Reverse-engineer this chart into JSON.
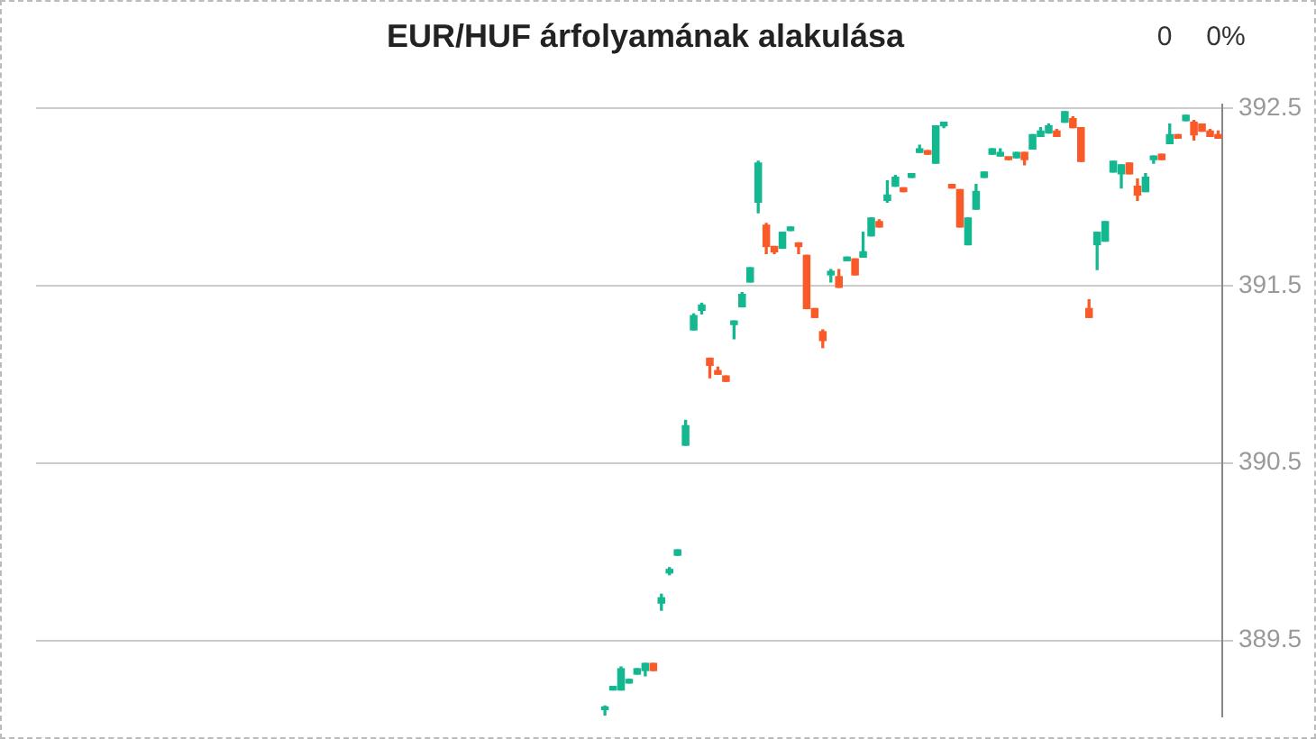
{
  "chart_data": {
    "type": "candlestick",
    "title": "EUR/HUF árfolyamának alakulása",
    "annotations": [
      "0",
      "0%"
    ],
    "categories": [
      null,
      null,
      null,
      null,
      null,
      null,
      null,
      null,
      null,
      null,
      null,
      null,
      null,
      null,
      null,
      null,
      null,
      null,
      null,
      null,
      null,
      null,
      null,
      null,
      null,
      null,
      null,
      null,
      null,
      null,
      null,
      null,
      null,
      null,
      null,
      null,
      null,
      null,
      null,
      null,
      null,
      null,
      null,
      null,
      null,
      null,
      null,
      null,
      null,
      null,
      null,
      null,
      null,
      null,
      null,
      null,
      null,
      null,
      null,
      null,
      null,
      null,
      null,
      null,
      null,
      null,
      null,
      null,
      null,
      null,
      null,
      null,
      null,
      null,
      null,
      null,
      null,
      null,
      null,
      null,
      null,
      null,
      null,
      null,
      null,
      null,
      null,
      null,
      null,
      null,
      null,
      null,
      null,
      null,
      null,
      null,
      null,
      null,
      null,
      null,
      null,
      null,
      null,
      null,
      null,
      null,
      null,
      null,
      null,
      null,
      null,
      null,
      null,
      null,
      null,
      null,
      null,
      null,
      null,
      null,
      null,
      null,
      null,
      null,
      null,
      null,
      null,
      null,
      null,
      null,
      null,
      null,
      null,
      null,
      null,
      null,
      null,
      null,
      null,
      null,
      null,
      null,
      null,
      null,
      null,
      null,
      null
    ],
    "colors": [
      null,
      null,
      null,
      null,
      null,
      null,
      null,
      null,
      null,
      null,
      null,
      null,
      null,
      null,
      null,
      null,
      null,
      null,
      null,
      null,
      null,
      null,
      null,
      null,
      null,
      null,
      null,
      null,
      null,
      null,
      null,
      null,
      null,
      null,
      null,
      null,
      null,
      null,
      null,
      null,
      null,
      null,
      null,
      null,
      null,
      null,
      null,
      null,
      null,
      null,
      null,
      null,
      null,
      null,
      null,
      null,
      null,
      null,
      null,
      null,
      null,
      null,
      null,
      null,
      null,
      null,
      null,
      null,
      null,
      null,
      "#14b890",
      "#14b890",
      "#14b890",
      "#14b890",
      "#14b890",
      "#14b890",
      "#fa5a28",
      "#14b890",
      "#14b890",
      "#14b890",
      "#14b890",
      "#14b890",
      "#14b890",
      "#fa5a28",
      "#fa5a28",
      "#fa5a28",
      "#14b890",
      "#14b890",
      "#14b890",
      "#14b890",
      "#fa5a28",
      "#fa5a28",
      "#14b890",
      "#14b890",
      "#fa5a28",
      "#fa5a28",
      "#fa5a28",
      "#fa5a28",
      "#14b890",
      "#fa5a28",
      "#14b890",
      "#fa5a28",
      "#14b890",
      "#14b890",
      "#fa5a28",
      "#14b890",
      "#14b890",
      "#fa5a28",
      "#14b890",
      "#14b890",
      "#fa5a28",
      "#14b890",
      "#14b890",
      "#fa5a28",
      "#fa5a28",
      "#14b890",
      "#14b890",
      "#14b890",
      "#14b890",
      "#14b890",
      "#fa5a28",
      "#14b890",
      "#fa5a28",
      "#14b890",
      "#14b890",
      "#14b890",
      "#fa5a28",
      "#14b890",
      "#fa5a28",
      "#fa5a28",
      "#fa5a28",
      "#14b890",
      "#14b890",
      "#14b890",
      "#14b890",
      "#fa5a28",
      "#fa5a28",
      "#14b890",
      "#14b890",
      "#fa5a28",
      "#14b890",
      "#fa5a28",
      "#14b890",
      "#fa5a28",
      "#fa5a28",
      "#fa5a28",
      "#fa5a28"
    ],
    "ohlc": [
      null,
      null,
      null,
      null,
      null,
      null,
      null,
      null,
      null,
      null,
      null,
      null,
      null,
      null,
      null,
      null,
      null,
      null,
      null,
      null,
      null,
      null,
      null,
      null,
      null,
      null,
      null,
      null,
      null,
      null,
      null,
      null,
      null,
      null,
      null,
      null,
      null,
      null,
      null,
      null,
      null,
      null,
      null,
      null,
      null,
      null,
      null,
      null,
      null,
      null,
      null,
      null,
      null,
      null,
      null,
      null,
      null,
      null,
      null,
      null,
      null,
      null,
      null,
      null,
      null,
      null,
      null,
      null,
      null,
      null,
      [
        389.11,
        389.13,
        389.08,
        389.12
      ],
      [
        389.22,
        389.24,
        389.22,
        389.24
      ],
      [
        389.22,
        389.35,
        389.22,
        389.34
      ],
      [
        389.26,
        389.28,
        389.26,
        389.28
      ],
      [
        389.31,
        389.34,
        389.31,
        389.34
      ],
      [
        389.33,
        389.37,
        389.3,
        389.37
      ],
      [
        389.37,
        389.37,
        389.33,
        389.33
      ],
      [
        389.71,
        389.76,
        389.67,
        389.74
      ],
      [
        389.88,
        389.91,
        389.87,
        389.9
      ],
      [
        389.98,
        390.01,
        389.98,
        390.01
      ],
      [
        390.6,
        390.74,
        390.6,
        390.71
      ],
      [
        391.25,
        391.34,
        391.25,
        391.33
      ],
      [
        391.36,
        391.4,
        391.34,
        391.39
      ],
      [
        391.09,
        391.09,
        390.98,
        391.05
      ],
      [
        391.02,
        391.04,
        391.0,
        391.0
      ],
      [
        390.99,
        390.99,
        390.96,
        390.96
      ],
      [
        391.28,
        391.3,
        391.2,
        391.3
      ],
      [
        391.38,
        391.46,
        391.38,
        391.45
      ],
      [
        391.52,
        391.6,
        391.52,
        391.6
      ],
      [
        391.97,
        392.2,
        391.91,
        392.19
      ],
      [
        391.84,
        391.85,
        391.68,
        391.72
      ],
      [
        391.72,
        391.72,
        391.68,
        391.69
      ],
      [
        391.71,
        391.8,
        391.71,
        391.8
      ],
      [
        391.81,
        391.83,
        391.81,
        391.83
      ],
      [
        391.74,
        391.74,
        391.68,
        391.72
      ],
      [
        391.67,
        391.67,
        391.37,
        391.37
      ],
      [
        391.37,
        391.37,
        391.32,
        391.32
      ],
      [
        391.24,
        391.25,
        391.15,
        391.19
      ],
      [
        391.56,
        391.59,
        391.52,
        391.58
      ],
      [
        391.55,
        391.59,
        391.49,
        391.49
      ],
      [
        391.64,
        391.66,
        391.64,
        391.66
      ],
      [
        391.65,
        391.65,
        391.56,
        391.56
      ],
      [
        391.66,
        391.8,
        391.66,
        391.69
      ],
      [
        391.78,
        391.88,
        391.78,
        391.88
      ],
      [
        391.86,
        391.87,
        391.83,
        391.83
      ],
      [
        391.98,
        392.09,
        391.97,
        392.01
      ],
      [
        392.06,
        392.12,
        392.06,
        392.11
      ],
      [
        392.05,
        392.05,
        392.03,
        392.03
      ],
      [
        392.11,
        392.13,
        392.11,
        392.13
      ],
      [
        392.25,
        392.29,
        392.25,
        392.27
      ],
      [
        392.26,
        392.26,
        392.24,
        392.24
      ],
      [
        392.19,
        392.4,
        392.19,
        392.4
      ],
      [
        392.4,
        392.42,
        392.39,
        392.42
      ],
      [
        392.07,
        392.07,
        392.05,
        392.05
      ],
      [
        392.04,
        392.04,
        391.83,
        391.83
      ],
      [
        391.73,
        391.88,
        391.73,
        391.88
      ],
      [
        391.93,
        392.07,
        391.93,
        392.03
      ],
      [
        392.11,
        392.14,
        392.11,
        392.14
      ],
      [
        392.24,
        392.27,
        392.24,
        392.27
      ],
      [
        392.23,
        392.27,
        392.23,
        392.25
      ],
      [
        392.22,
        392.22,
        392.21,
        392.21
      ],
      [
        392.22,
        392.25,
        392.22,
        392.25
      ],
      [
        392.25,
        392.25,
        392.18,
        392.21
      ],
      [
        392.27,
        392.35,
        392.27,
        392.35
      ],
      [
        392.34,
        392.39,
        392.34,
        392.37
      ],
      [
        392.36,
        392.41,
        392.36,
        392.4
      ],
      [
        392.37,
        392.38,
        392.34,
        392.34
      ],
      [
        392.42,
        392.48,
        392.42,
        392.48
      ],
      [
        392.44,
        392.45,
        392.39,
        392.39
      ],
      [
        392.39,
        392.39,
        392.2,
        392.2
      ],
      [
        391.37,
        391.42,
        391.32,
        391.32
      ],
      [
        391.73,
        391.8,
        391.59,
        391.8
      ],
      [
        391.75,
        391.86,
        391.75,
        391.86
      ],
      [
        392.14,
        392.2,
        392.14,
        392.2
      ],
      [
        392.13,
        392.18,
        392.05,
        392.18
      ],
      [
        392.19,
        392.19,
        392.13,
        392.13
      ],
      [
        392.06,
        392.1,
        391.98,
        392.01
      ],
      [
        392.03,
        392.13,
        392.03,
        392.11
      ],
      [
        392.21,
        392.23,
        392.19,
        392.23
      ],
      [
        392.24,
        392.24,
        392.21,
        392.21
      ],
      [
        392.3,
        392.41,
        392.3,
        392.35
      ],
      [
        392.35,
        392.35,
        392.33,
        392.33
      ],
      [
        392.43,
        392.46,
        392.43,
        392.46
      ],
      [
        392.42,
        392.43,
        392.32,
        392.35
      ],
      [
        392.41,
        392.41,
        392.37,
        392.37
      ],
      [
        392.37,
        392.38,
        392.34,
        392.34
      ],
      [
        392.35,
        392.37,
        392.33,
        392.33
      ]
    ],
    "ylim": [
      389.07,
      392.52
    ],
    "yticks": [
      389.5,
      390.5,
      391.5,
      392.5
    ],
    "grid": "y",
    "tick_labels": "y"
  }
}
